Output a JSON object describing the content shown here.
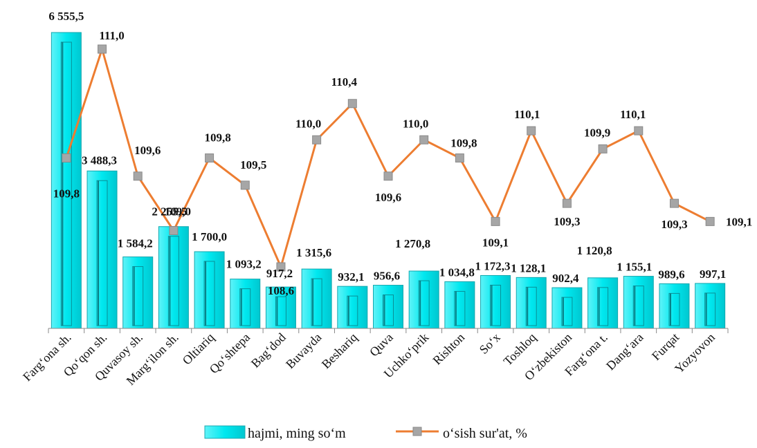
{
  "chart_data": {
    "type": "bar",
    "categories": [
      "Farg‘ona sh.",
      "Qo‘qon sh.",
      "Quvasoy sh.",
      "Marg‘ilon sh.",
      "Oltiariq",
      "Qo‘shtepa",
      "Bag‘dod",
      "Buvayda",
      "Beshariq",
      "Quva",
      "Uchko‘prik",
      "Rishton",
      "So‘x",
      "Toshloq",
      "O‘zbekiston",
      "Farg‘ona t.",
      "Dang‘ara",
      "Furqat",
      "Yozyovon"
    ],
    "series": [
      {
        "name": "hajmi, ming so‘m",
        "type": "bar",
        "values": [
          6555.5,
          3488.3,
          1584.2,
          2255.5,
          1700.0,
          1093.2,
          917.2,
          1315.6,
          932.1,
          956.6,
          1270.8,
          1034.8,
          1172.3,
          1128.1,
          902.4,
          1120.8,
          1155.1,
          989.6,
          997.1
        ],
        "labels": [
          "6 555,5",
          "3 488,3",
          "1 584,2",
          "2 255,5",
          "1 700,0",
          "1 093,2",
          "917,2",
          "1 315,6",
          "932,1",
          "956,6",
          "1 270,8",
          "1 034,8",
          "1 172,3",
          "1 128,1",
          "902,4",
          "1 120,8",
          "1 155,1",
          "989,6",
          "997,1"
        ],
        "color": "#00e5ee"
      },
      {
        "name": "o‘sish sur'at, %",
        "type": "line",
        "values": [
          109.8,
          111.0,
          109.6,
          109.0,
          109.8,
          109.5,
          108.6,
          110.0,
          110.4,
          109.6,
          110.0,
          109.8,
          109.1,
          110.1,
          109.3,
          109.9,
          110.1,
          109.3,
          109.1
        ],
        "labels": [
          "109,8",
          "111,0",
          "109,6",
          "109,0",
          "109,8",
          "109,5",
          "108,6",
          "110,0",
          "110,4",
          "109,6",
          "110,0",
          "109,8",
          "109,1",
          "110,1",
          "109,3",
          "109,9",
          "110,1",
          "109,3",
          "109,1"
        ],
        "color": "#ed7d31",
        "marker_color": "#a6a6a6"
      }
    ],
    "axes": {
      "bar_ylim": [
        0,
        6555.5
      ],
      "line_ylim": [
        106.7,
        111.0
      ]
    },
    "legend_position": "bottom",
    "grid": false
  }
}
